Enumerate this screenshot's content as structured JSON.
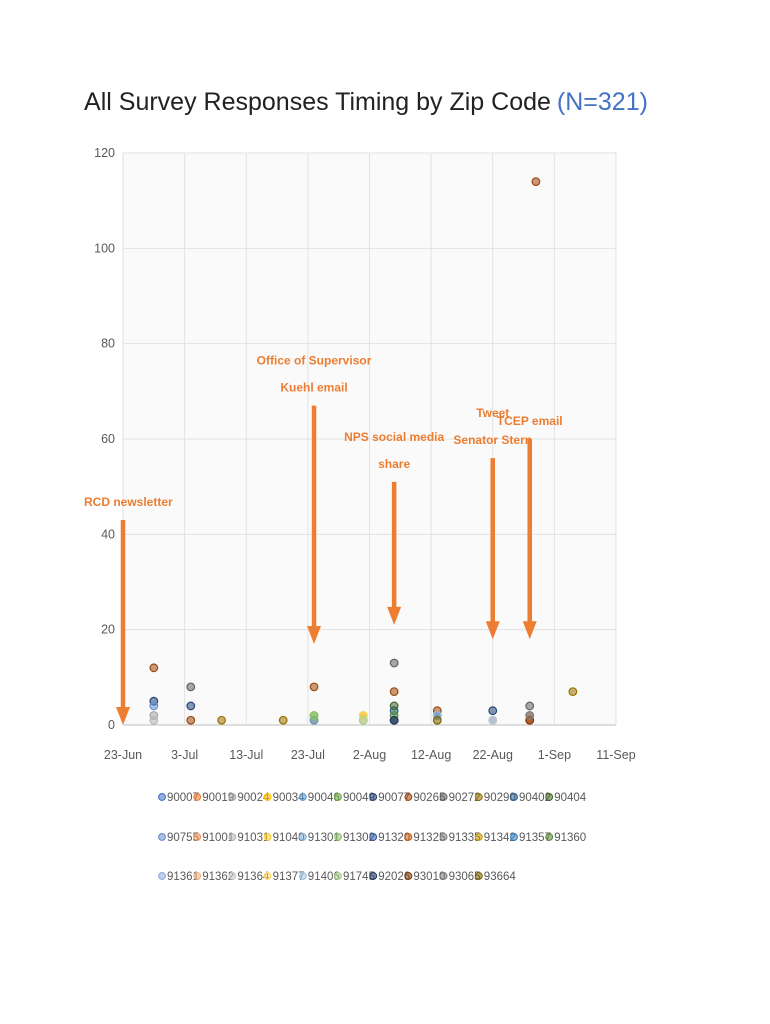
{
  "chart_data": {
    "type": "scatter",
    "title": "All Survey Responses Timing by Zip Code",
    "title_highlight": "(N=321)",
    "xlabel": "",
    "ylabel": "",
    "x_axis": {
      "type": "date",
      "range": [
        "2020-06-23",
        "2020-09-11"
      ],
      "tick_values": [
        "2020-06-23",
        "2020-07-03",
        "2020-07-13",
        "2020-07-23",
        "2020-08-02",
        "2020-08-12",
        "2020-08-22",
        "2020-09-01",
        "2020-09-11"
      ],
      "tick_labels": [
        "23-Jun",
        "3-Jul",
        "13-Jul",
        "23-Jul",
        "2-Aug",
        "12-Aug",
        "22-Aug",
        "1-Sep",
        "11-Sep"
      ]
    },
    "y_axis": {
      "range": [
        0,
        120
      ],
      "tick_values": [
        0,
        20,
        40,
        60,
        80,
        100,
        120
      ],
      "tick_labels": [
        "0",
        "20",
        "40",
        "60",
        "80",
        "100",
        "120"
      ]
    },
    "grid": true,
    "legend_position": "bottom",
    "legend_rows": [
      [
        "90007",
        "90019",
        "90024",
        "90034",
        "90046",
        "90049",
        "90077",
        "90265",
        "90272",
        "90290",
        "90402",
        "90404"
      ],
      [
        "90755",
        "91001",
        "91031",
        "91040",
        "91301",
        "91302",
        "91320",
        "91325",
        "91335",
        "91342",
        "91357",
        "91360"
      ],
      [
        "91361",
        "91362",
        "91364",
        "91377",
        "91406",
        "91745",
        "92026",
        "93010",
        "93065",
        "93664"
      ]
    ],
    "series": [
      {
        "name": "90007",
        "color": "#4472C4",
        "points": [
          {
            "x": "2020-07-24",
            "y": 1
          }
        ]
      },
      {
        "name": "90019",
        "color": "#ED7D31",
        "points": [
          {
            "x": "2020-08-06",
            "y": 1
          }
        ]
      },
      {
        "name": "90024",
        "color": "#A5A5A5",
        "points": [
          {
            "x": "2020-06-28",
            "y": 2
          }
        ]
      },
      {
        "name": "90034",
        "color": "#FFC000",
        "points": [
          {
            "x": "2020-07-24",
            "y": 1
          }
        ]
      },
      {
        "name": "90046",
        "color": "#5B9BD5",
        "points": [
          {
            "x": "2020-07-24",
            "y": 1
          }
        ]
      },
      {
        "name": "90049",
        "color": "#70AD47",
        "points": [
          {
            "x": "2020-07-24",
            "y": 2
          }
        ]
      },
      {
        "name": "90077",
        "color": "#264478",
        "points": [
          {
            "x": "2020-06-28",
            "y": 5
          },
          {
            "x": "2020-07-04",
            "y": 4
          },
          {
            "x": "2020-08-06",
            "y": 1
          },
          {
            "x": "2020-08-13",
            "y": 2
          },
          {
            "x": "2020-08-22",
            "y": 3
          }
        ]
      },
      {
        "name": "90265",
        "color": "#9E480E",
        "points": [
          {
            "x": "2020-06-28",
            "y": 12
          },
          {
            "x": "2020-07-04",
            "y": 1
          },
          {
            "x": "2020-07-24",
            "y": 8
          },
          {
            "x": "2020-08-06",
            "y": 7
          },
          {
            "x": "2020-08-13",
            "y": 3
          },
          {
            "x": "2020-08-28",
            "y": 2
          },
          {
            "x": "2020-08-29",
            "y": 114
          }
        ]
      },
      {
        "name": "90272",
        "color": "#636363",
        "points": [
          {
            "x": "2020-07-04",
            "y": 8
          },
          {
            "x": "2020-08-06",
            "y": 13
          },
          {
            "x": "2020-08-28",
            "y": 4
          }
        ]
      },
      {
        "name": "90290",
        "color": "#997300",
        "points": [
          {
            "x": "2020-07-09",
            "y": 1
          },
          {
            "x": "2020-07-19",
            "y": 1
          },
          {
            "x": "2020-09-04",
            "y": 7
          }
        ]
      },
      {
        "name": "90402",
        "color": "#255E91",
        "points": [
          {
            "x": "2020-08-06",
            "y": 3
          }
        ]
      },
      {
        "name": "90404",
        "color": "#43682B",
        "points": [
          {
            "x": "2020-08-06",
            "y": 4
          }
        ]
      },
      {
        "name": "90755",
        "color": "#698ED0",
        "points": [
          {
            "x": "2020-06-28",
            "y": 4
          }
        ]
      },
      {
        "name": "91001",
        "color": "#F1975A",
        "points": [
          {
            "x": "2020-08-28",
            "y": 1
          }
        ]
      },
      {
        "name": "91031",
        "color": "#B7B7B7",
        "points": [
          {
            "x": "2020-06-28",
            "y": 1
          }
        ]
      },
      {
        "name": "91040",
        "color": "#FFCD33",
        "points": [
          {
            "x": "2020-08-01",
            "y": 2
          }
        ]
      },
      {
        "name": "91301",
        "color": "#7CAFDD",
        "points": [
          {
            "x": "2020-08-22",
            "y": 1
          }
        ]
      },
      {
        "name": "91302",
        "color": "#8CC168",
        "points": [
          {
            "x": "2020-07-24",
            "y": 2
          }
        ]
      },
      {
        "name": "91320",
        "color": "#335AA1",
        "points": [
          {
            "x": "2020-08-06",
            "y": 1
          }
        ]
      },
      {
        "name": "91325",
        "color": "#D26012",
        "points": [
          {
            "x": "2020-08-28",
            "y": 1
          }
        ]
      },
      {
        "name": "91335",
        "color": "#848484",
        "points": [
          {
            "x": "2020-08-06",
            "y": 1
          }
        ]
      },
      {
        "name": "91342",
        "color": "#CC9A00",
        "points": [
          {
            "x": "2020-08-01",
            "y": 2
          }
        ]
      },
      {
        "name": "91357",
        "color": "#327DC2",
        "points": [
          {
            "x": "2020-08-13",
            "y": 2
          }
        ]
      },
      {
        "name": "91360",
        "color": "#5A8A39",
        "points": [
          {
            "x": "2020-08-06",
            "y": 2
          }
        ]
      },
      {
        "name": "91361",
        "color": "#8FAADC",
        "points": [
          {
            "x": "2020-08-22",
            "y": 1
          }
        ]
      },
      {
        "name": "91362",
        "color": "#F4B183",
        "points": [
          {
            "x": "2020-08-01",
            "y": 1
          }
        ]
      },
      {
        "name": "91364",
        "color": "#C9C9C9",
        "points": [
          {
            "x": "2020-08-22",
            "y": 1
          }
        ]
      },
      {
        "name": "91377",
        "color": "#FFD966",
        "points": [
          {
            "x": "2020-08-01",
            "y": 2
          }
        ]
      },
      {
        "name": "91406",
        "color": "#9DC3E6",
        "points": [
          {
            "x": "2020-08-13",
            "y": 2
          }
        ]
      },
      {
        "name": "91745",
        "color": "#A9D18E",
        "points": [
          {
            "x": "2020-08-01",
            "y": 1
          }
        ]
      },
      {
        "name": "92026",
        "color": "#203864",
        "points": [
          {
            "x": "2020-08-06",
            "y": 1
          }
        ]
      },
      {
        "name": "93010",
        "color": "#843C0C",
        "points": [
          {
            "x": "2020-08-28",
            "y": 1
          }
        ]
      },
      {
        "name": "93065",
        "color": "#7F7F7F",
        "points": [
          {
            "x": "2020-08-28",
            "y": 2
          }
        ]
      },
      {
        "name": "93664",
        "color": "#7F6000",
        "points": [
          {
            "x": "2020-08-13",
            "y": 1
          }
        ]
      }
    ],
    "annotations": [
      {
        "lines": [
          "RCD newsletter"
        ],
        "arrow_tip": {
          "x": "2020-06-23",
          "y": 0
        },
        "arrow_from_y": 43
      },
      {
        "lines": [
          "Office of Supervisor",
          "Kuehl email"
        ],
        "arrow_tip": {
          "x": "2020-07-24",
          "y": 17
        },
        "arrow_from_y": 67
      },
      {
        "lines": [
          "NPS social media",
          "share"
        ],
        "arrow_tip": {
          "x": "2020-08-06",
          "y": 21
        },
        "arrow_from_y": 51
      },
      {
        "lines": [
          "Tweet",
          "Senator Stern"
        ],
        "arrow_tip": {
          "x": "2020-08-22",
          "y": 18
        },
        "arrow_from_y": 56
      },
      {
        "lines": [
          "TCEP email"
        ],
        "arrow_tip": {
          "x": "2020-08-28",
          "y": 18
        },
        "arrow_from_y": 60
      }
    ]
  }
}
